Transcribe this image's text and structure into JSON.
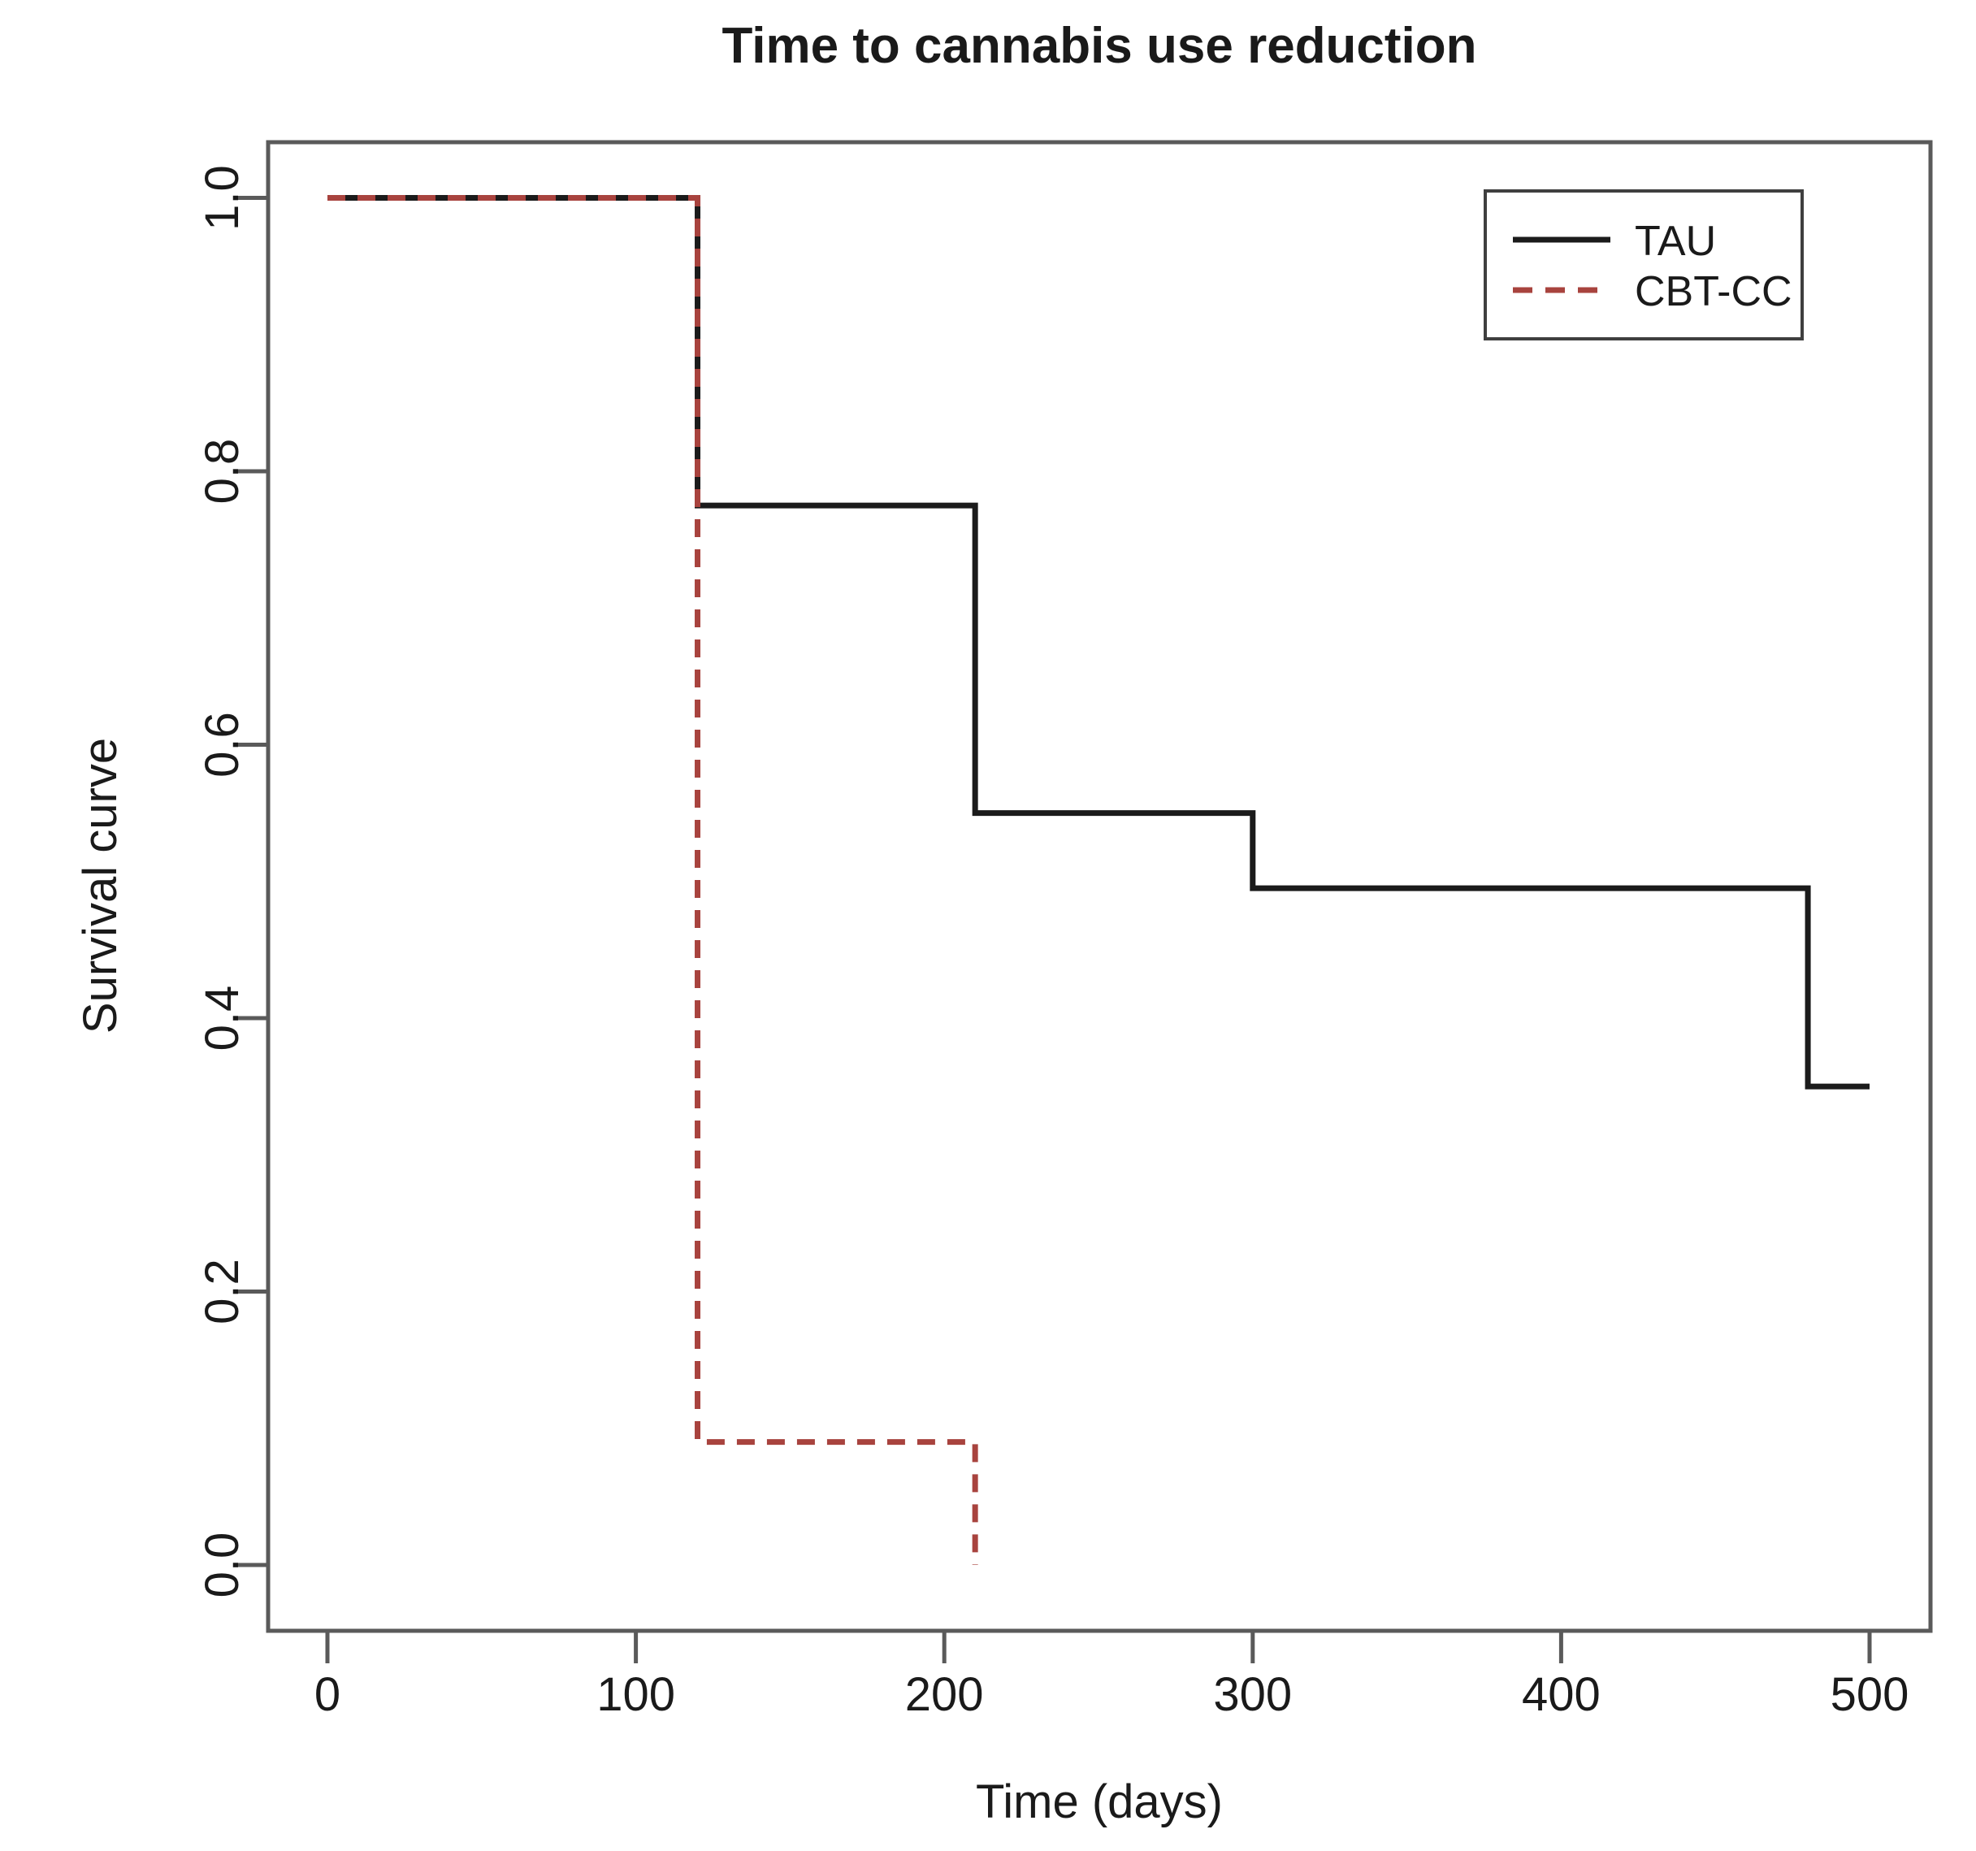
{
  "chart_data": {
    "type": "line",
    "subtype": "kaplan-meier-step-survival",
    "title": "Time to cannabis use reduction",
    "xlabel": "Time (days)",
    "ylabel": "Survival curve",
    "xlim": [
      0,
      500
    ],
    "ylim": [
      0.0,
      1.0
    ],
    "grid": false,
    "x_ticks": {
      "values": [
        0,
        100,
        200,
        300,
        400,
        500
      ],
      "labels": [
        "0",
        "100",
        "200",
        "300",
        "400",
        "500"
      ]
    },
    "y_ticks": {
      "values": [
        0.0,
        0.2,
        0.4,
        0.6,
        0.8,
        1.0
      ],
      "labels": [
        "0.0",
        "0.2",
        "0.4",
        "0.6",
        "0.8",
        "1.0"
      ]
    },
    "series": [
      {
        "name": "TAU",
        "color": "#1b1b1b",
        "line_style": "solid",
        "change_times": [
          0,
          120,
          210,
          300,
          480
        ],
        "values": [
          1.0,
          0.775,
          0.55,
          0.495,
          0.35
        ],
        "end_time": 500
      },
      {
        "name": "CBT-CC",
        "color": "#a8433e",
        "line_style": "dashed",
        "change_times": [
          0,
          120,
          210
        ],
        "values": [
          1.0,
          0.09,
          0.0
        ],
        "end_time": 210
      }
    ],
    "legend": {
      "position": "top-right",
      "entries": [
        {
          "label": "TAU",
          "line": "solid",
          "color": "#1b1b1b"
        },
        {
          "label": "CBT-CC",
          "line": "dashed",
          "color": "#a8433e"
        }
      ]
    },
    "colors": {
      "background": "#ffffff",
      "axis": "#5a5a5a",
      "text": "#1a1a1a",
      "legend_border": "#3f3f3f"
    }
  }
}
